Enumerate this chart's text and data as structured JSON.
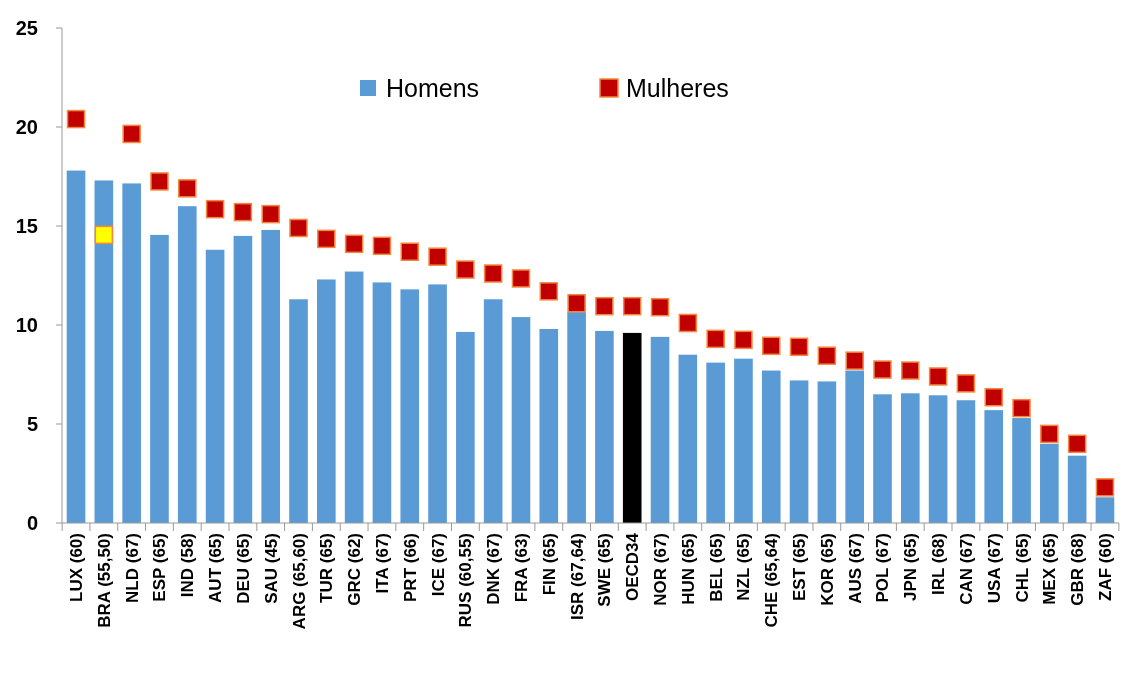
{
  "chart_data": {
    "type": "bar",
    "categories": [
      "LUX (60)",
      "BRA (55,50)",
      "NLD (67)",
      "ESP (65)",
      "IND (58)",
      "AUT (65)",
      "DEU (65)",
      "SAU (45)",
      "ARG (65,60)",
      "TUR (65)",
      "GRC (62)",
      "ITA (67)",
      "PRT (66)",
      "ICE (67)",
      "RUS (60,55)",
      "DNK (67)",
      "FRA (63)",
      "FIN (65)",
      "ISR (67,64)",
      "SWE (65)",
      "OECD34",
      "NOR (67)",
      "HUN (65)",
      "BEL (65)",
      "NZL (65)",
      "CHE (65,64)",
      "EST (65)",
      "KOR (65)",
      "AUS (67)",
      "POL (67)",
      "JPN (65)",
      "IRL (68)",
      "CAN (67)",
      "USA (67)",
      "CHL (65)",
      "MEX (65)",
      "GBR (68)",
      "ZAF (60)"
    ],
    "series": [
      {
        "name": "Homens",
        "color": "#5b9bd5",
        "colors": [
          "#5b9bd5",
          "#5b9bd5",
          "#5b9bd5",
          "#5b9bd5",
          "#5b9bd5",
          "#5b9bd5",
          "#5b9bd5",
          "#5b9bd5",
          "#5b9bd5",
          "#5b9bd5",
          "#5b9bd5",
          "#5b9bd5",
          "#5b9bd5",
          "#5b9bd5",
          "#5b9bd5",
          "#5b9bd5",
          "#5b9bd5",
          "#5b9bd5",
          "#5b9bd5",
          "#5b9bd5",
          "#000000",
          "#5b9bd5",
          "#5b9bd5",
          "#5b9bd5",
          "#5b9bd5",
          "#5b9bd5",
          "#5b9bd5",
          "#5b9bd5",
          "#5b9bd5",
          "#5b9bd5",
          "#5b9bd5",
          "#5b9bd5",
          "#5b9bd5",
          "#5b9bd5",
          "#5b9bd5",
          "#5b9bd5",
          "#5b9bd5",
          "#5b9bd5"
        ],
        "values": [
          17.8,
          17.3,
          17.15,
          14.55,
          16.0,
          13.8,
          14.5,
          14.8,
          11.3,
          12.3,
          12.7,
          12.15,
          11.8,
          12.05,
          9.65,
          11.3,
          10.4,
          9.8,
          10.65,
          9.7,
          9.6,
          9.4,
          8.5,
          8.1,
          8.3,
          7.7,
          7.2,
          7.15,
          7.7,
          6.5,
          6.55,
          6.45,
          6.2,
          5.7,
          5.3,
          4.0,
          3.4,
          1.3
        ]
      },
      {
        "name": "Mulheres",
        "type": "scatter",
        "marker": "square",
        "color": "#c00000",
        "colors": [
          "#c00000",
          "#ffff00",
          "#c00000",
          "#c00000",
          "#c00000",
          "#c00000",
          "#c00000",
          "#c00000",
          "#c00000",
          "#c00000",
          "#c00000",
          "#c00000",
          "#c00000",
          "#c00000",
          "#c00000",
          "#c00000",
          "#c00000",
          "#c00000",
          "#c00000",
          "#c00000",
          "#c00000",
          "#c00000",
          "#c00000",
          "#c00000",
          "#c00000",
          "#c00000",
          "#c00000",
          "#c00000",
          "#c00000",
          "#c00000",
          "#c00000",
          "#c00000",
          "#c00000",
          "#c00000",
          "#c00000",
          "#c00000",
          "#c00000",
          "#c00000"
        ],
        "values": [
          20.4,
          14.55,
          19.65,
          17.25,
          16.9,
          15.85,
          15.7,
          15.6,
          14.9,
          14.35,
          14.1,
          14.0,
          13.7,
          13.45,
          12.8,
          12.6,
          12.35,
          11.7,
          11.1,
          10.95,
          10.95,
          10.9,
          10.1,
          9.3,
          9.25,
          8.95,
          8.9,
          8.45,
          8.2,
          7.75,
          7.7,
          7.4,
          7.05,
          6.35,
          5.8,
          4.5,
          4.0,
          1.8
        ]
      }
    ],
    "ylim": [
      0,
      25
    ],
    "yticks": [
      0,
      5,
      10,
      15,
      20,
      25
    ],
    "legend": "top"
  }
}
